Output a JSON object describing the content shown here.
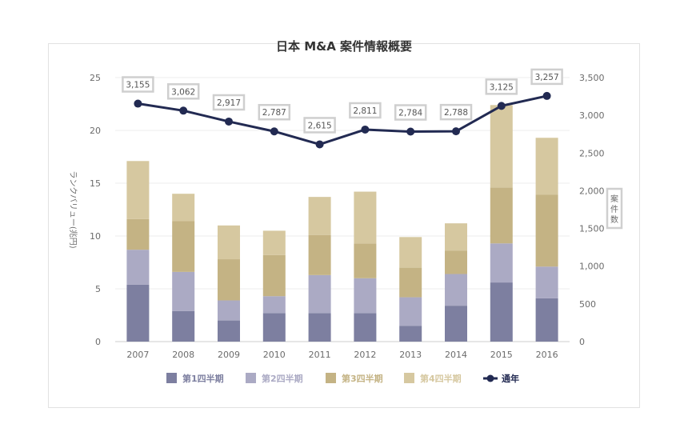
{
  "chart_data": {
    "type": "bar",
    "title": "日本 M&A 案件情報概要",
    "categories": [
      "2007",
      "2008",
      "2009",
      "2010",
      "2011",
      "2012",
      "2013",
      "2014",
      "2015",
      "2016"
    ],
    "ylabel": "ランクバリュー(兆円)",
    "y2label": "案件数",
    "ylim": [
      0,
      25
    ],
    "yticks": [
      "0",
      "5",
      "10",
      "15",
      "20",
      "25"
    ],
    "y2lim": [
      0,
      3500
    ],
    "y2ticks": [
      "0",
      "500",
      "1,000",
      "1,500",
      "2,000",
      "2,500",
      "3,000",
      "3,500"
    ],
    "grid": true,
    "legend_position": "bottom",
    "series": [
      {
        "name": "第1四半期",
        "type": "bar",
        "stack": true,
        "color": "#7d7fa0",
        "values": [
          5.4,
          2.9,
          2.0,
          2.7,
          2.7,
          2.7,
          1.5,
          3.4,
          5.6,
          4.1
        ]
      },
      {
        "name": "第2四半期",
        "type": "bar",
        "stack": true,
        "color": "#abaac4",
        "values": [
          3.3,
          3.7,
          1.9,
          1.6,
          3.6,
          3.3,
          2.7,
          3.0,
          3.7,
          3.0
        ]
      },
      {
        "name": "第3四半期",
        "type": "bar",
        "stack": true,
        "color": "#c4b384",
        "values": [
          2.9,
          4.8,
          3.9,
          3.9,
          3.8,
          3.3,
          2.8,
          2.2,
          5.3,
          6.8
        ]
      },
      {
        "name": "第4四半期",
        "type": "bar",
        "stack": true,
        "color": "#d6c8a0",
        "values": [
          5.5,
          2.6,
          3.2,
          2.3,
          3.6,
          4.9,
          2.9,
          2.6,
          7.8,
          5.4
        ]
      },
      {
        "name": "通年",
        "type": "line",
        "axis": "right",
        "color": "#222a52",
        "values": [
          3155,
          3062,
          2917,
          2787,
          2615,
          2811,
          2784,
          2788,
          3125,
          3257
        ],
        "labels": [
          "3,155",
          "3,062",
          "2,917",
          "2,787",
          "2,615",
          "2,811",
          "2,784",
          "2,788",
          "3,125",
          "3,257"
        ]
      }
    ]
  }
}
